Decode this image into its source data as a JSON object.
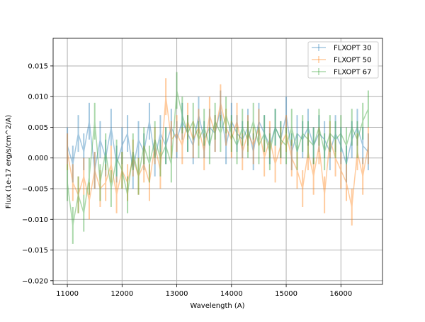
{
  "chart_data": {
    "type": "line",
    "title": "",
    "xlabel": "Wavelength (A)",
    "ylabel": "Flux (1e-17 erg/s/cm^2/A)",
    "xlim": [
      10740,
      16760
    ],
    "ylim": [
      -0.0206,
      0.0195
    ],
    "xticks": [
      11000,
      12000,
      13000,
      14000,
      15000,
      16000
    ],
    "xtick_labels": [
      "11000",
      "12000",
      "13000",
      "14000",
      "15000",
      "16000"
    ],
    "yticks": [
      -0.02,
      -0.015,
      -0.01,
      -0.005,
      0.0,
      0.005,
      0.01,
      0.015
    ],
    "ytick_labels": [
      "−0.020",
      "−0.015",
      "−0.010",
      "−0.005",
      "0.000",
      "0.005",
      "0.010",
      "0.015"
    ],
    "grid": true,
    "legend_position": "top-right",
    "x_start": 11000,
    "x_step": 100,
    "series": [
      {
        "name": "FLXOPT 30",
        "color": "#1f77b4",
        "error": 0.003,
        "values": [
          0.002,
          -0.001,
          0.004,
          0.001,
          0.006,
          -0.002,
          0.003,
          0.0,
          0.005,
          -0.001,
          0.002,
          0.004,
          -0.002,
          0.003,
          0.001,
          0.006,
          0.0,
          0.004,
          0.002,
          0.005,
          0.003,
          0.006,
          0.004,
          0.002,
          0.007,
          0.003,
          0.005,
          0.004,
          0.008,
          0.002,
          0.006,
          0.004,
          0.003,
          0.005,
          0.001,
          0.006,
          0.004,
          0.002,
          0.005,
          0.003,
          0.007,
          0.001,
          0.004,
          0.003,
          0.005,
          0.002,
          0.004,
          0.003,
          0.001,
          0.004,
          0.002,
          -0.001,
          0.003,
          0.005,
          0.002,
          0.001
        ]
      },
      {
        "name": "FLXOPT 50",
        "color": "#ff7f0e",
        "error": 0.003,
        "values": [
          0.001,
          -0.004,
          -0.006,
          -0.003,
          -0.007,
          -0.002,
          -0.005,
          -0.004,
          -0.001,
          -0.006,
          -0.002,
          -0.004,
          0.0,
          -0.003,
          -0.001,
          -0.004,
          0.002,
          -0.002,
          0.01,
          0.003,
          0.004,
          0.002,
          0.006,
          0.003,
          0.005,
          0.001,
          0.007,
          0.004,
          0.009,
          0.005,
          0.003,
          0.006,
          0.001,
          0.004,
          0.002,
          0.005,
          0.0,
          0.003,
          -0.001,
          0.002,
          0.004,
          0.0,
          -0.002,
          -0.005,
          0.001,
          -0.003,
          0.002,
          -0.006,
          0.003,
          0.0,
          -0.002,
          -0.004,
          -0.008,
          0.001,
          -0.003,
          0.002
        ]
      },
      {
        "name": "FLXOPT 67",
        "color": "#2ca02c",
        "error": 0.003,
        "values": [
          -0.004,
          -0.011,
          -0.006,
          -0.009,
          -0.003,
          0.006,
          -0.004,
          0.001,
          -0.005,
          0.0,
          -0.002,
          -0.006,
          0.001,
          -0.003,
          0.002,
          -0.001,
          0.003,
          0.0,
          0.002,
          -0.001,
          0.011,
          0.007,
          0.004,
          0.006,
          0.003,
          0.005,
          0.002,
          0.006,
          0.004,
          0.007,
          0.004,
          0.002,
          0.005,
          0.003,
          0.006,
          0.002,
          0.004,
          0.001,
          0.005,
          0.003,
          0.002,
          0.005,
          0.001,
          0.004,
          0.003,
          0.002,
          0.005,
          0.001,
          0.004,
          0.003,
          0.004,
          0.002,
          0.005,
          0.003,
          0.006,
          0.008
        ]
      }
    ]
  }
}
